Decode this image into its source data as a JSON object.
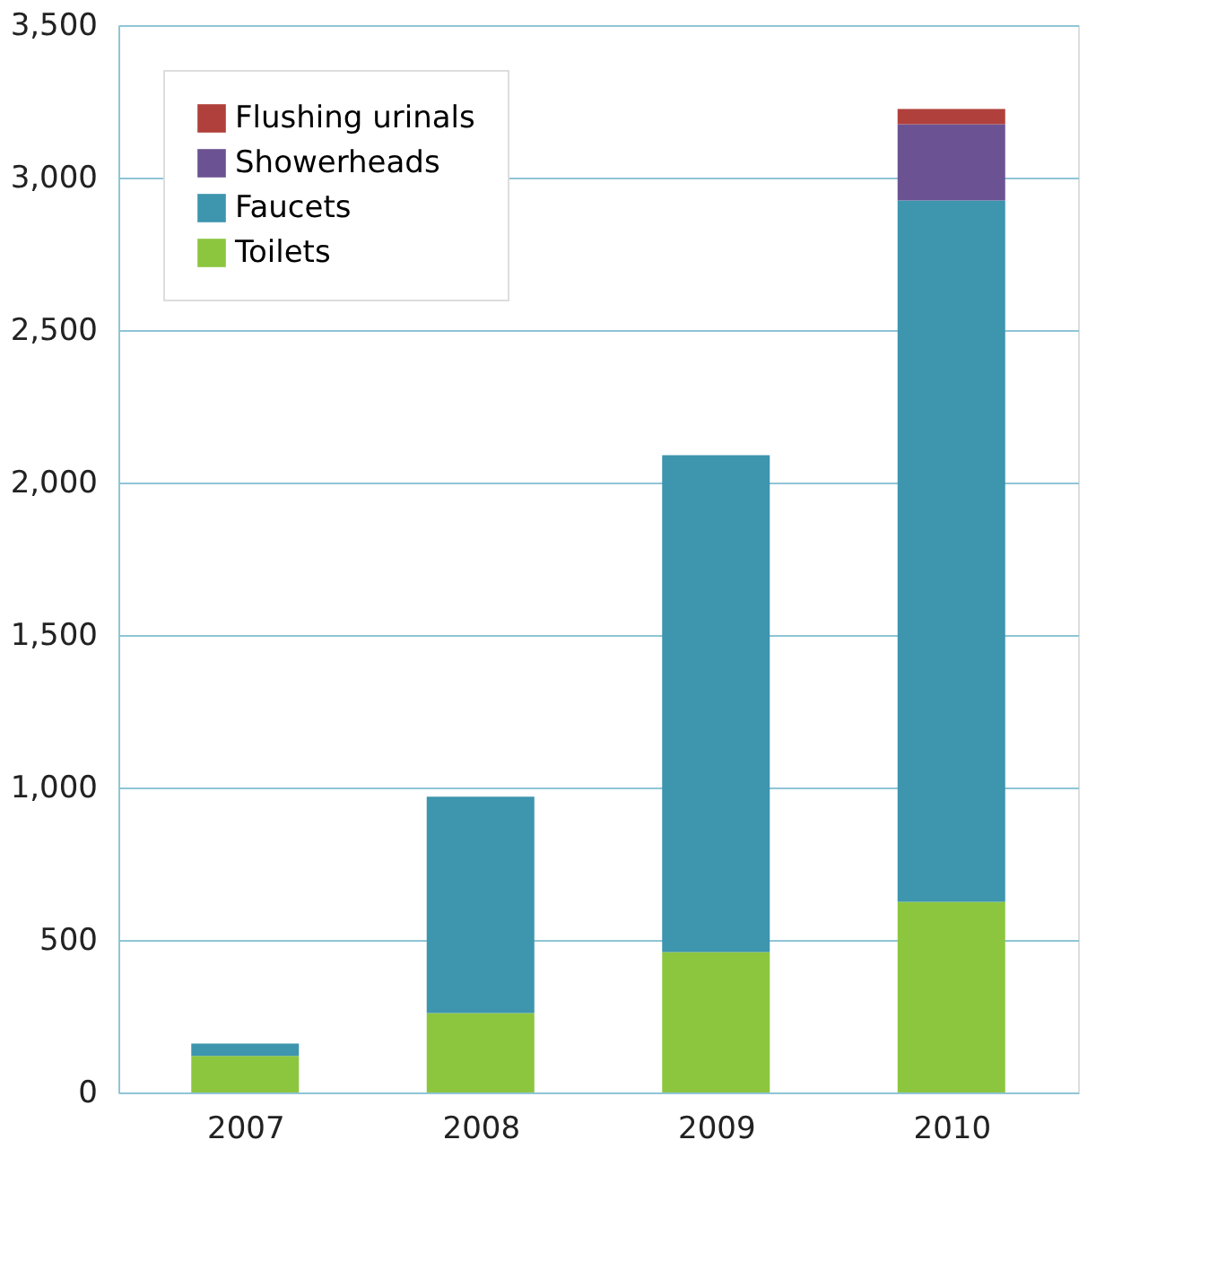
{
  "chart_data": {
    "type": "bar",
    "stacked": true,
    "categories": [
      "2007",
      "2008",
      "2009",
      "2010"
    ],
    "series": [
      {
        "name": "Toilets",
        "color": "#8cc63f",
        "values": [
          120,
          260,
          460,
          625
        ]
      },
      {
        "name": "Faucets",
        "color": "#3d95ae",
        "values": [
          40,
          710,
          1630,
          2300
        ]
      },
      {
        "name": "Showerheads",
        "color": "#6b5393",
        "values": [
          0,
          0,
          0,
          250
        ]
      },
      {
        "name": "Flushing urinals",
        "color": "#b0403b",
        "values": [
          0,
          0,
          0,
          50
        ]
      }
    ],
    "ylim": [
      0,
      3500
    ],
    "yticks": [
      0,
      500,
      {
        "value": 1000,
        "label": "1,000"
      },
      {
        "value": 1500,
        "label": "1,500"
      },
      {
        "value": 2000,
        "label": "2,000"
      },
      {
        "value": 2500,
        "label": "2,500"
      },
      {
        "value": 3000,
        "label": "3,000"
      },
      {
        "value": 3500,
        "label": "3,500"
      }
    ],
    "grid": "y",
    "legend": "top left"
  }
}
